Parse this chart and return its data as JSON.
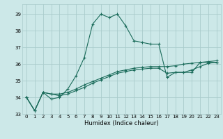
{
  "xlabel": "Humidex (Indice chaleur)",
  "bg_color": "#cce8e8",
  "grid_color": "#aacccc",
  "line_color": "#1a6b5a",
  "xlim": [
    -0.5,
    23.5
  ],
  "ylim": [
    33.0,
    39.6
  ],
  "yticks": [
    33,
    34,
    35,
    36,
    37,
    38,
    39
  ],
  "xticks": [
    0,
    1,
    2,
    3,
    4,
    5,
    6,
    7,
    8,
    9,
    10,
    11,
    12,
    13,
    14,
    15,
    16,
    17,
    18,
    19,
    20,
    21,
    22,
    23
  ],
  "series": [
    [
      34.0,
      33.2,
      34.3,
      33.9,
      34.0,
      34.5,
      35.3,
      36.4,
      38.4,
      39.0,
      38.8,
      39.0,
      38.3,
      37.4,
      37.3,
      37.2,
      37.2,
      35.2,
      35.5,
      35.5,
      35.5,
      36.1,
      36.1,
      36.1
    ],
    [
      34.0,
      33.2,
      34.3,
      34.2,
      34.1,
      34.2,
      34.4,
      34.6,
      34.85,
      35.05,
      35.25,
      35.45,
      35.55,
      35.65,
      35.7,
      35.75,
      35.75,
      35.45,
      35.5,
      35.5,
      35.65,
      35.85,
      36.05,
      36.1
    ],
    [
      34.0,
      33.2,
      34.3,
      34.2,
      34.2,
      34.3,
      34.5,
      34.75,
      34.95,
      35.15,
      35.35,
      35.55,
      35.65,
      35.75,
      35.8,
      35.85,
      35.85,
      35.85,
      35.9,
      36.0,
      36.05,
      36.1,
      36.15,
      36.2
    ]
  ]
}
